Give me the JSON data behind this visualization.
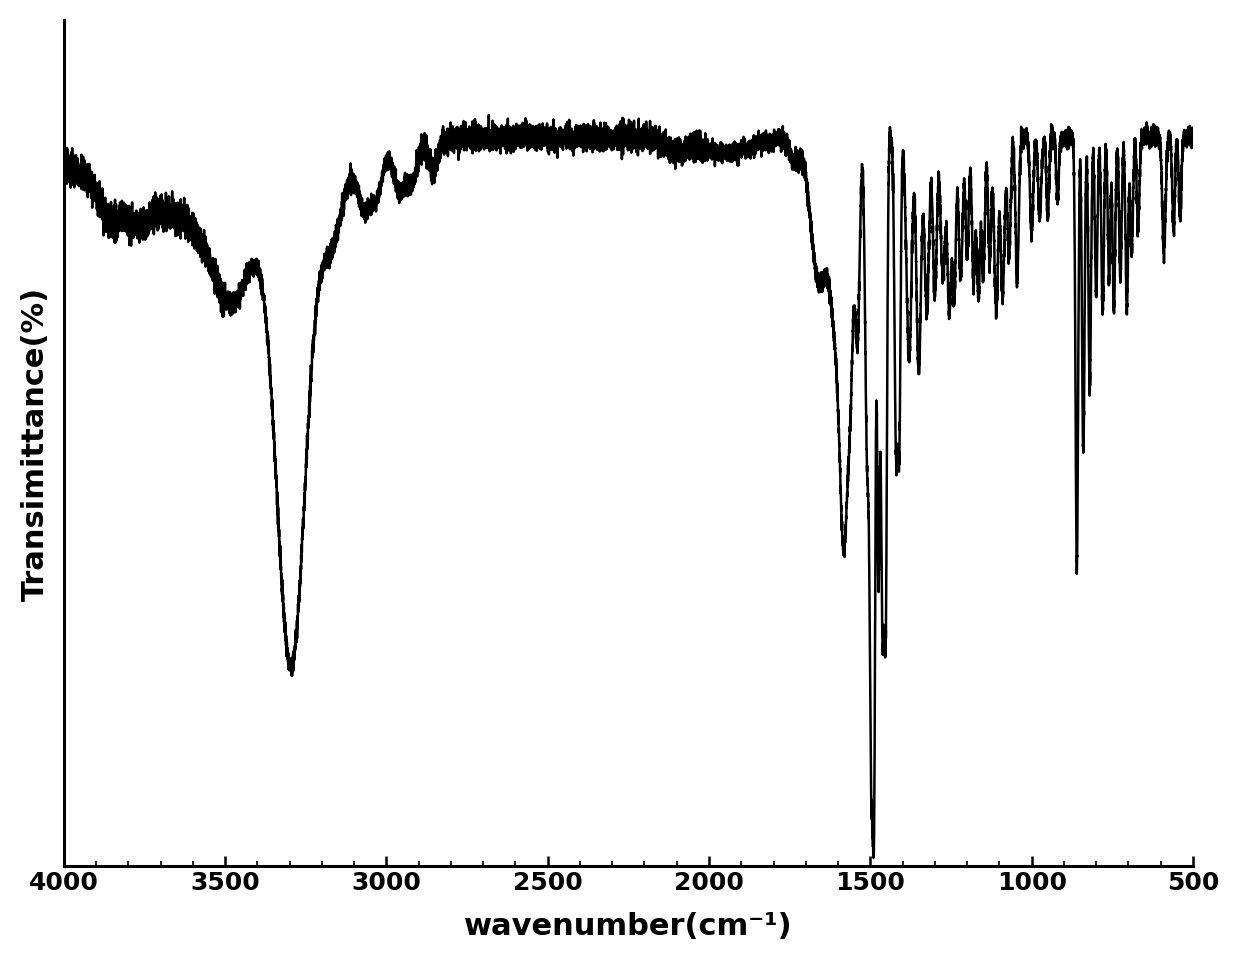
{
  "title": "",
  "xlabel": "wavenumber(cm⁻¹)",
  "ylabel": "Transimittance(%)",
  "xlim": [
    4000,
    500
  ],
  "x_ticks": [
    4000,
    3500,
    3000,
    2500,
    2000,
    1500,
    1000,
    500
  ],
  "background_color": "#ffffff",
  "line_color": "#000000",
  "line_width": 1.8,
  "xlabel_fontsize": 22,
  "ylabel_fontsize": 22,
  "fontsize_ticks": 18
}
